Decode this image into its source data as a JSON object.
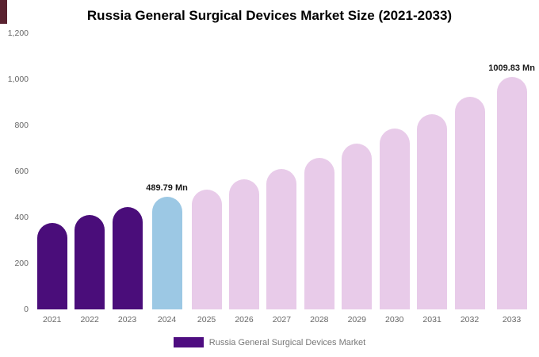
{
  "title": "Russia General Surgical Devices Market Size (2021-2033)",
  "legend": {
    "label": "Russia General Surgical Devices Market",
    "swatch_color": "#4e0d80"
  },
  "colors": {
    "past": "#4a0d7a",
    "current": "#9cc8e4",
    "forecast": "#e8cbe9"
  },
  "chart_data": {
    "type": "bar",
    "title": "Russia General Surgical Devices Market Size (2021-2033)",
    "xlabel": "",
    "ylabel": "",
    "ylim": [
      0,
      1200
    ],
    "grid": false,
    "legend_position": "bottom",
    "categories": [
      "2021",
      "2022",
      "2023",
      "2024",
      "2025",
      "2026",
      "2027",
      "2028",
      "2029",
      "2030",
      "2031",
      "2032",
      "2033"
    ],
    "values": [
      375,
      410,
      445,
      489.79,
      520,
      565,
      610,
      660,
      720,
      785,
      850,
      925,
      1009.83
    ],
    "color_roles": [
      "past",
      "past",
      "past",
      "current",
      "forecast",
      "forecast",
      "forecast",
      "forecast",
      "forecast",
      "forecast",
      "forecast",
      "forecast",
      "forecast"
    ],
    "point_labels": {
      "2024": "489.79 Mn",
      "2033": "1009.83 Mn"
    },
    "yticks": [
      {
        "value": 1200,
        "label": "1,200"
      },
      {
        "value": 1000,
        "label": "1,000"
      },
      {
        "value": 800,
        "label": "800"
      },
      {
        "value": 600,
        "label": "600"
      },
      {
        "value": 400,
        "label": "400"
      },
      {
        "value": 200,
        "label": "200"
      },
      {
        "value": 0,
        "label": "0"
      }
    ]
  }
}
